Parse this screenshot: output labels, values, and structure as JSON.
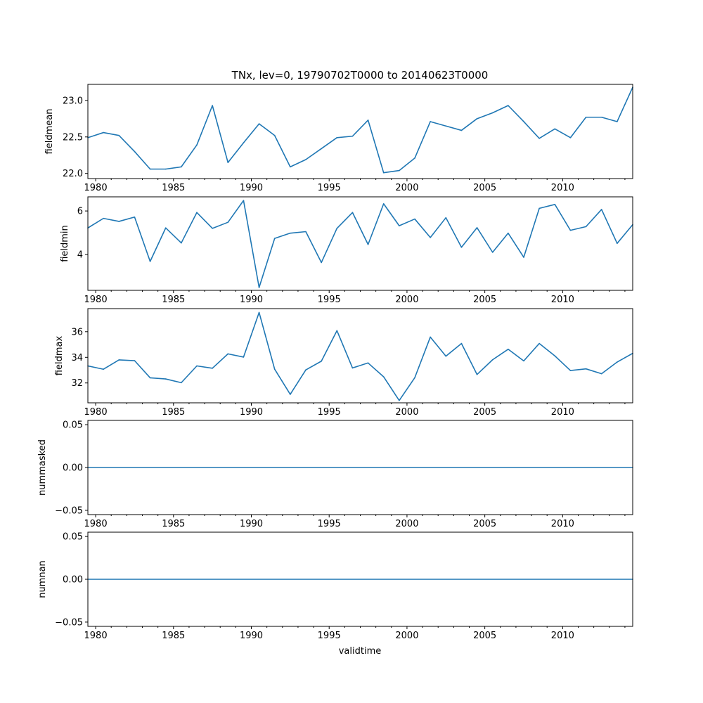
{
  "figure": {
    "title": "TNx, lev=0, 19790702T0000 to 20140623T0000",
    "xlabel": "validtime"
  },
  "colors": {
    "line": "#1f77b4",
    "axes": "#000000"
  },
  "chart_data": [
    {
      "type": "line",
      "name": "fieldmean",
      "ylabel": "fieldmean",
      "xlim": [
        1979.5,
        2014.5
      ],
      "ylim": [
        21.93,
        23.22
      ],
      "xticks": [
        1980,
        1985,
        1990,
        1995,
        2000,
        2005,
        2010
      ],
      "yticks": [
        22.0,
        22.5,
        23.0
      ],
      "ytick_labels": [
        "22.0",
        "22.5",
        "23.0"
      ],
      "x": [
        1979.5,
        1980.5,
        1981.5,
        1982.5,
        1983.5,
        1984.5,
        1985.5,
        1986.5,
        1987.5,
        1988.5,
        1989.5,
        1990.5,
        1991.5,
        1992.5,
        1993.5,
        1994.5,
        1995.5,
        1996.5,
        1997.5,
        1998.5,
        1999.5,
        2000.5,
        2001.5,
        2002.5,
        2003.5,
        2004.5,
        2005.5,
        2006.5,
        2007.5,
        2008.5,
        2009.5,
        2010.5,
        2011.5,
        2012.5,
        2013.5,
        2014.5
      ],
      "values": [
        22.49,
        22.56,
        22.52,
        22.3,
        22.06,
        22.06,
        22.09,
        22.39,
        22.93,
        22.15,
        22.42,
        22.68,
        22.52,
        22.09,
        22.19,
        22.34,
        22.49,
        22.51,
        22.73,
        22.01,
        22.04,
        22.21,
        22.71,
        22.65,
        22.59,
        22.75,
        22.83,
        22.93,
        22.71,
        22.48,
        22.61,
        22.49,
        22.77,
        22.77,
        22.71,
        23.18
      ]
    },
    {
      "type": "line",
      "name": "fieldmin",
      "ylabel": "fieldmin",
      "xlim": [
        1979.5,
        2014.5
      ],
      "ylim": [
        2.35,
        6.65
      ],
      "xticks": [
        1980,
        1985,
        1990,
        1995,
        2000,
        2005,
        2010
      ],
      "yticks": [
        4,
        6
      ],
      "ytick_labels": [
        "4",
        "6"
      ],
      "x": [
        1979.5,
        1980.5,
        1981.5,
        1982.5,
        1983.5,
        1984.5,
        1985.5,
        1986.5,
        1987.5,
        1988.5,
        1989.5,
        1990.5,
        1991.5,
        1992.5,
        1993.5,
        1994.5,
        1995.5,
        1996.5,
        1997.5,
        1998.5,
        1999.5,
        2000.5,
        2001.5,
        2002.5,
        2003.5,
        2004.5,
        2005.5,
        2006.5,
        2007.5,
        2008.5,
        2009.5,
        2010.5,
        2011.5,
        2012.5,
        2013.5,
        2014.5
      ],
      "values": [
        5.22,
        5.66,
        5.52,
        5.72,
        3.68,
        5.22,
        4.53,
        5.93,
        5.2,
        5.48,
        6.48,
        2.48,
        4.74,
        4.98,
        5.05,
        3.63,
        5.2,
        5.93,
        4.46,
        6.33,
        5.32,
        5.63,
        4.78,
        5.69,
        4.33,
        5.23,
        4.1,
        4.98,
        3.87,
        6.12,
        6.3,
        5.11,
        5.28,
        6.07,
        4.51,
        5.37
      ]
    },
    {
      "type": "line",
      "name": "fieldmax",
      "ylabel": "fieldmax",
      "xlim": [
        1979.5,
        2014.5
      ],
      "ylim": [
        30.45,
        37.8
      ],
      "xticks": [
        1980,
        1985,
        1990,
        1995,
        2000,
        2005,
        2010
      ],
      "yticks": [
        32,
        34,
        36
      ],
      "ytick_labels": [
        "32",
        "34",
        "36"
      ],
      "x": [
        1979.5,
        1980.5,
        1981.5,
        1982.5,
        1983.5,
        1984.5,
        1985.5,
        1986.5,
        1987.5,
        1988.5,
        1989.5,
        1990.5,
        1991.5,
        1992.5,
        1993.5,
        1994.5,
        1995.5,
        1996.5,
        1997.5,
        1998.5,
        1999.5,
        2000.5,
        2001.5,
        2002.5,
        2003.5,
        2004.5,
        2005.5,
        2006.5,
        2007.5,
        2008.5,
        2009.5,
        2010.5,
        2011.5,
        2012.5,
        2013.5,
        2014.5
      ],
      "values": [
        33.33,
        33.07,
        33.8,
        33.74,
        32.4,
        32.31,
        32.02,
        33.33,
        33.15,
        34.27,
        34.02,
        37.5,
        33.07,
        31.11,
        33.02,
        33.7,
        36.08,
        33.17,
        33.56,
        32.48,
        30.63,
        32.41,
        35.58,
        34.09,
        35.08,
        32.66,
        33.81,
        34.63,
        33.72,
        35.08,
        34.11,
        32.97,
        33.1,
        32.72,
        33.63,
        34.31
      ]
    },
    {
      "type": "line",
      "name": "nummasked",
      "ylabel": "nummasked",
      "xlim": [
        1979.5,
        2014.5
      ],
      "ylim": [
        -0.055,
        0.055
      ],
      "xticks": [
        1980,
        1985,
        1990,
        1995,
        2000,
        2005,
        2010
      ],
      "yticks": [
        -0.05,
        0.0,
        0.05
      ],
      "ytick_labels": [
        "−0.05",
        "0.00",
        "0.05"
      ],
      "x": [
        1979.5,
        2014.5
      ],
      "values": [
        0.0,
        0.0
      ]
    },
    {
      "type": "line",
      "name": "numnan",
      "ylabel": "numnan",
      "xlim": [
        1979.5,
        2014.5
      ],
      "ylim": [
        -0.055,
        0.055
      ],
      "xticks": [
        1980,
        1985,
        1990,
        1995,
        2000,
        2005,
        2010
      ],
      "yticks": [
        -0.05,
        0.0,
        0.05
      ],
      "ytick_labels": [
        "−0.05",
        "0.00",
        "0.05"
      ],
      "x": [
        1979.5,
        2014.5
      ],
      "values": [
        0.0,
        0.0
      ]
    }
  ]
}
